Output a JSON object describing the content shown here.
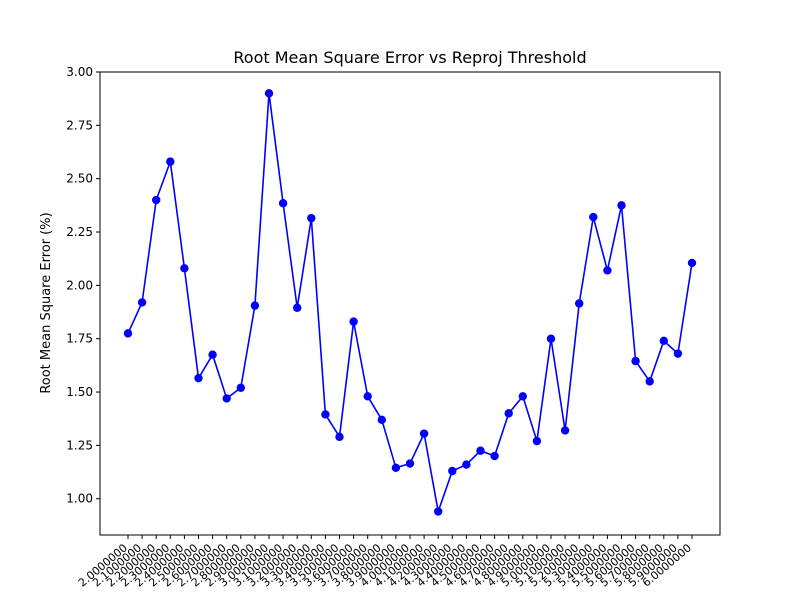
{
  "chart_data": {
    "type": "line",
    "title": "Root Mean Square Error vs Reproj Threshold",
    "xlabel": "",
    "ylabel": "Root Mean Square Error (%)",
    "ylim": [
      0.83,
      3.0
    ],
    "yticks": [
      "1.00",
      "1.25",
      "1.50",
      "1.75",
      "2.00",
      "2.25",
      "2.50",
      "2.75",
      "3.00"
    ],
    "grid": false,
    "x": [
      "2.0000000",
      "2.1000000",
      "2.2000000",
      "2.3000000",
      "2.4000000",
      "2.5000000",
      "2.6000000",
      "2.7000000",
      "2.8000000",
      "2.9000000",
      "3.0000000",
      "3.1000000",
      "3.2000000",
      "3.3000000",
      "3.4000000",
      "3.5000000",
      "3.6000000",
      "3.7000000",
      "3.8000000",
      "3.9000000",
      "4.0000000",
      "4.1000000",
      "4.2000000",
      "4.3000000",
      "4.4000000",
      "4.5000000",
      "4.6000000",
      "4.7000000",
      "4.8000000",
      "4.9000000",
      "5.0000000",
      "5.1000000",
      "5.2000000",
      "5.3000000",
      "5.4000000",
      "5.5000000",
      "5.6000000",
      "5.7000000",
      "5.8000000",
      "5.9000000",
      "6.0000000"
    ],
    "series": [
      {
        "name": "",
        "color": "#0000ff",
        "values": [
          1.775,
          1.92,
          2.4,
          2.58,
          2.08,
          1.565,
          1.675,
          1.47,
          1.52,
          1.905,
          2.9,
          2.385,
          1.895,
          2.315,
          1.395,
          1.29,
          1.83,
          1.48,
          1.37,
          1.145,
          1.165,
          1.305,
          0.94,
          1.13,
          1.16,
          1.225,
          1.2,
          1.4,
          1.48,
          1.27,
          1.75,
          1.32,
          1.915,
          2.32,
          2.07,
          2.375,
          1.645,
          1.55,
          1.74,
          1.68,
          2.105
        ]
      }
    ]
  }
}
